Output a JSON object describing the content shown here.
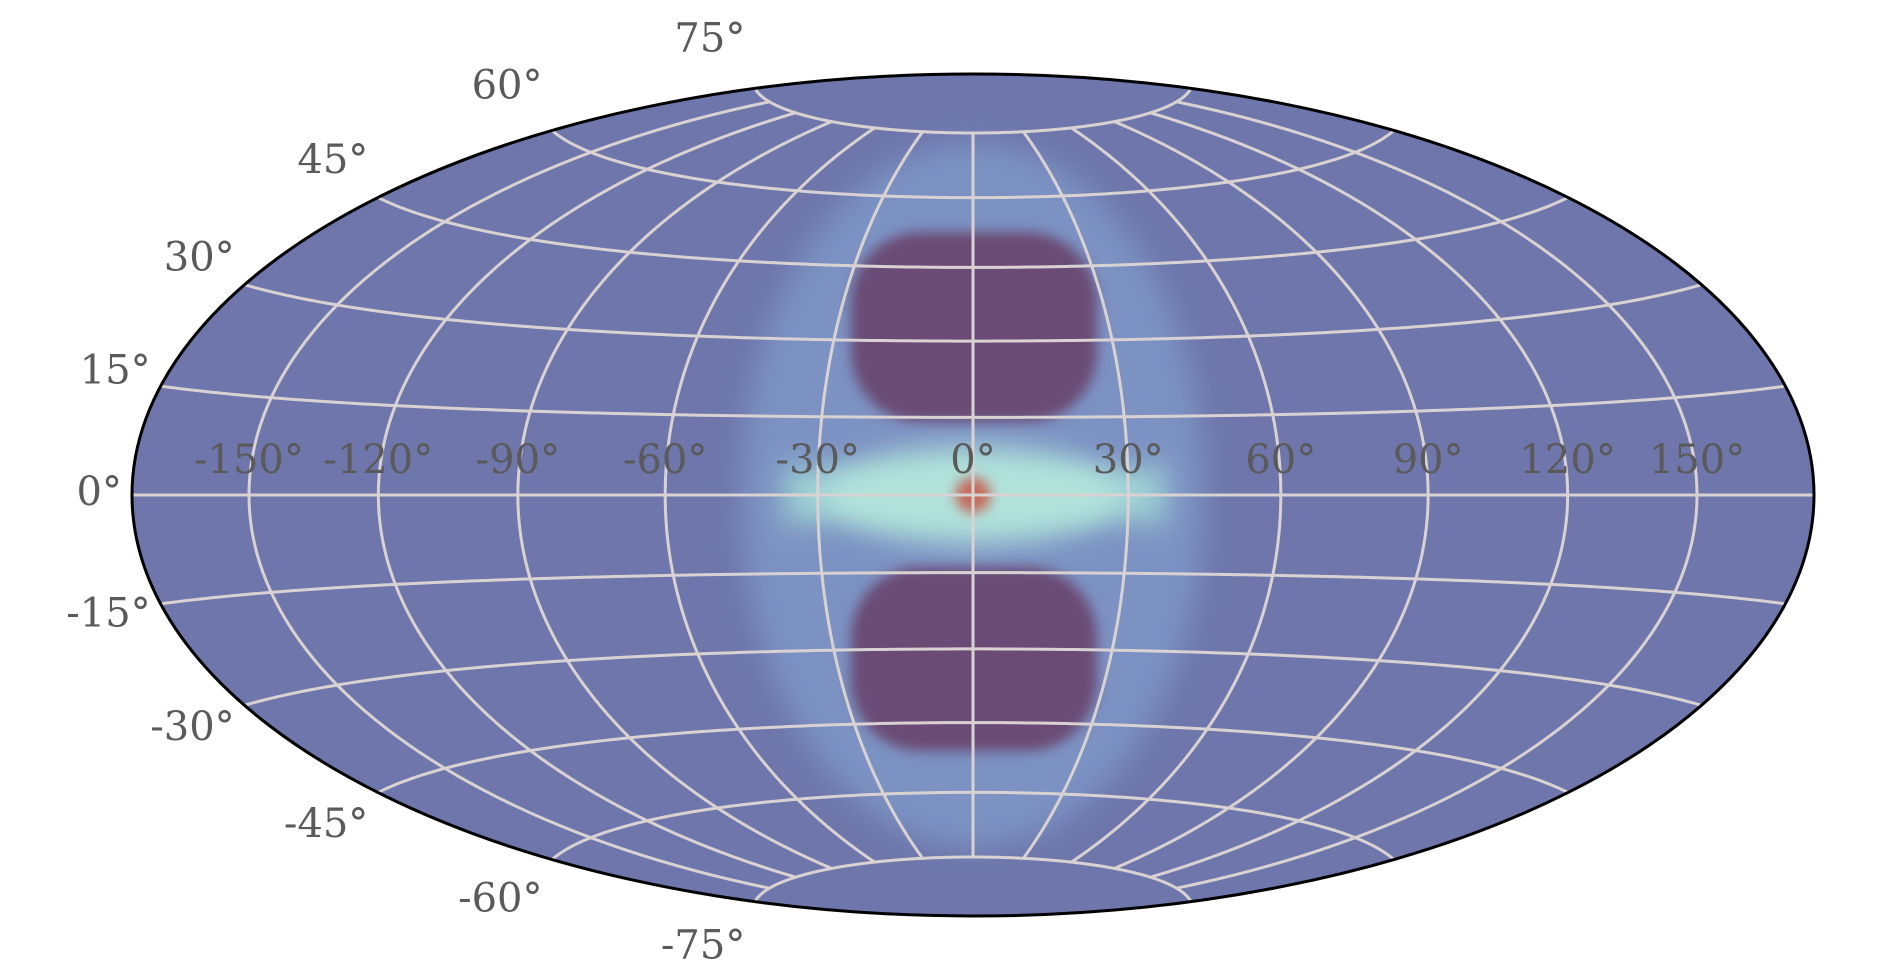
{
  "chart_data": {
    "type": "hammer",
    "xlim": [
      -180,
      180
    ],
    "ylim": [
      -90,
      90
    ],
    "xticks": [
      {
        "value": -150,
        "label": "-150°"
      },
      {
        "value": -120,
        "label": "-120°"
      },
      {
        "value": -90,
        "label": "-90°"
      },
      {
        "value": -60,
        "label": "-60°"
      },
      {
        "value": -30,
        "label": "-30°"
      },
      {
        "value": 0,
        "label": "0°"
      },
      {
        "value": 30,
        "label": "30°"
      },
      {
        "value": 60,
        "label": "60°"
      },
      {
        "value": 90,
        "label": "90°"
      },
      {
        "value": 120,
        "label": "120°"
      },
      {
        "value": 150,
        "label": "150°"
      }
    ],
    "yticks": [
      {
        "value": -75,
        "label": "-75°"
      },
      {
        "value": -60,
        "label": "-60°"
      },
      {
        "value": -45,
        "label": "-45°"
      },
      {
        "value": -30,
        "label": "-30°"
      },
      {
        "value": -15,
        "label": "-15°"
      },
      {
        "value": 0,
        "label": "0°"
      },
      {
        "value": 15,
        "label": "15°"
      },
      {
        "value": 30,
        "label": "30°"
      },
      {
        "value": 45,
        "label": "45°"
      },
      {
        "value": 60,
        "label": "60°"
      },
      {
        "value": 75,
        "label": "75°"
      }
    ],
    "grid": true
  }
}
